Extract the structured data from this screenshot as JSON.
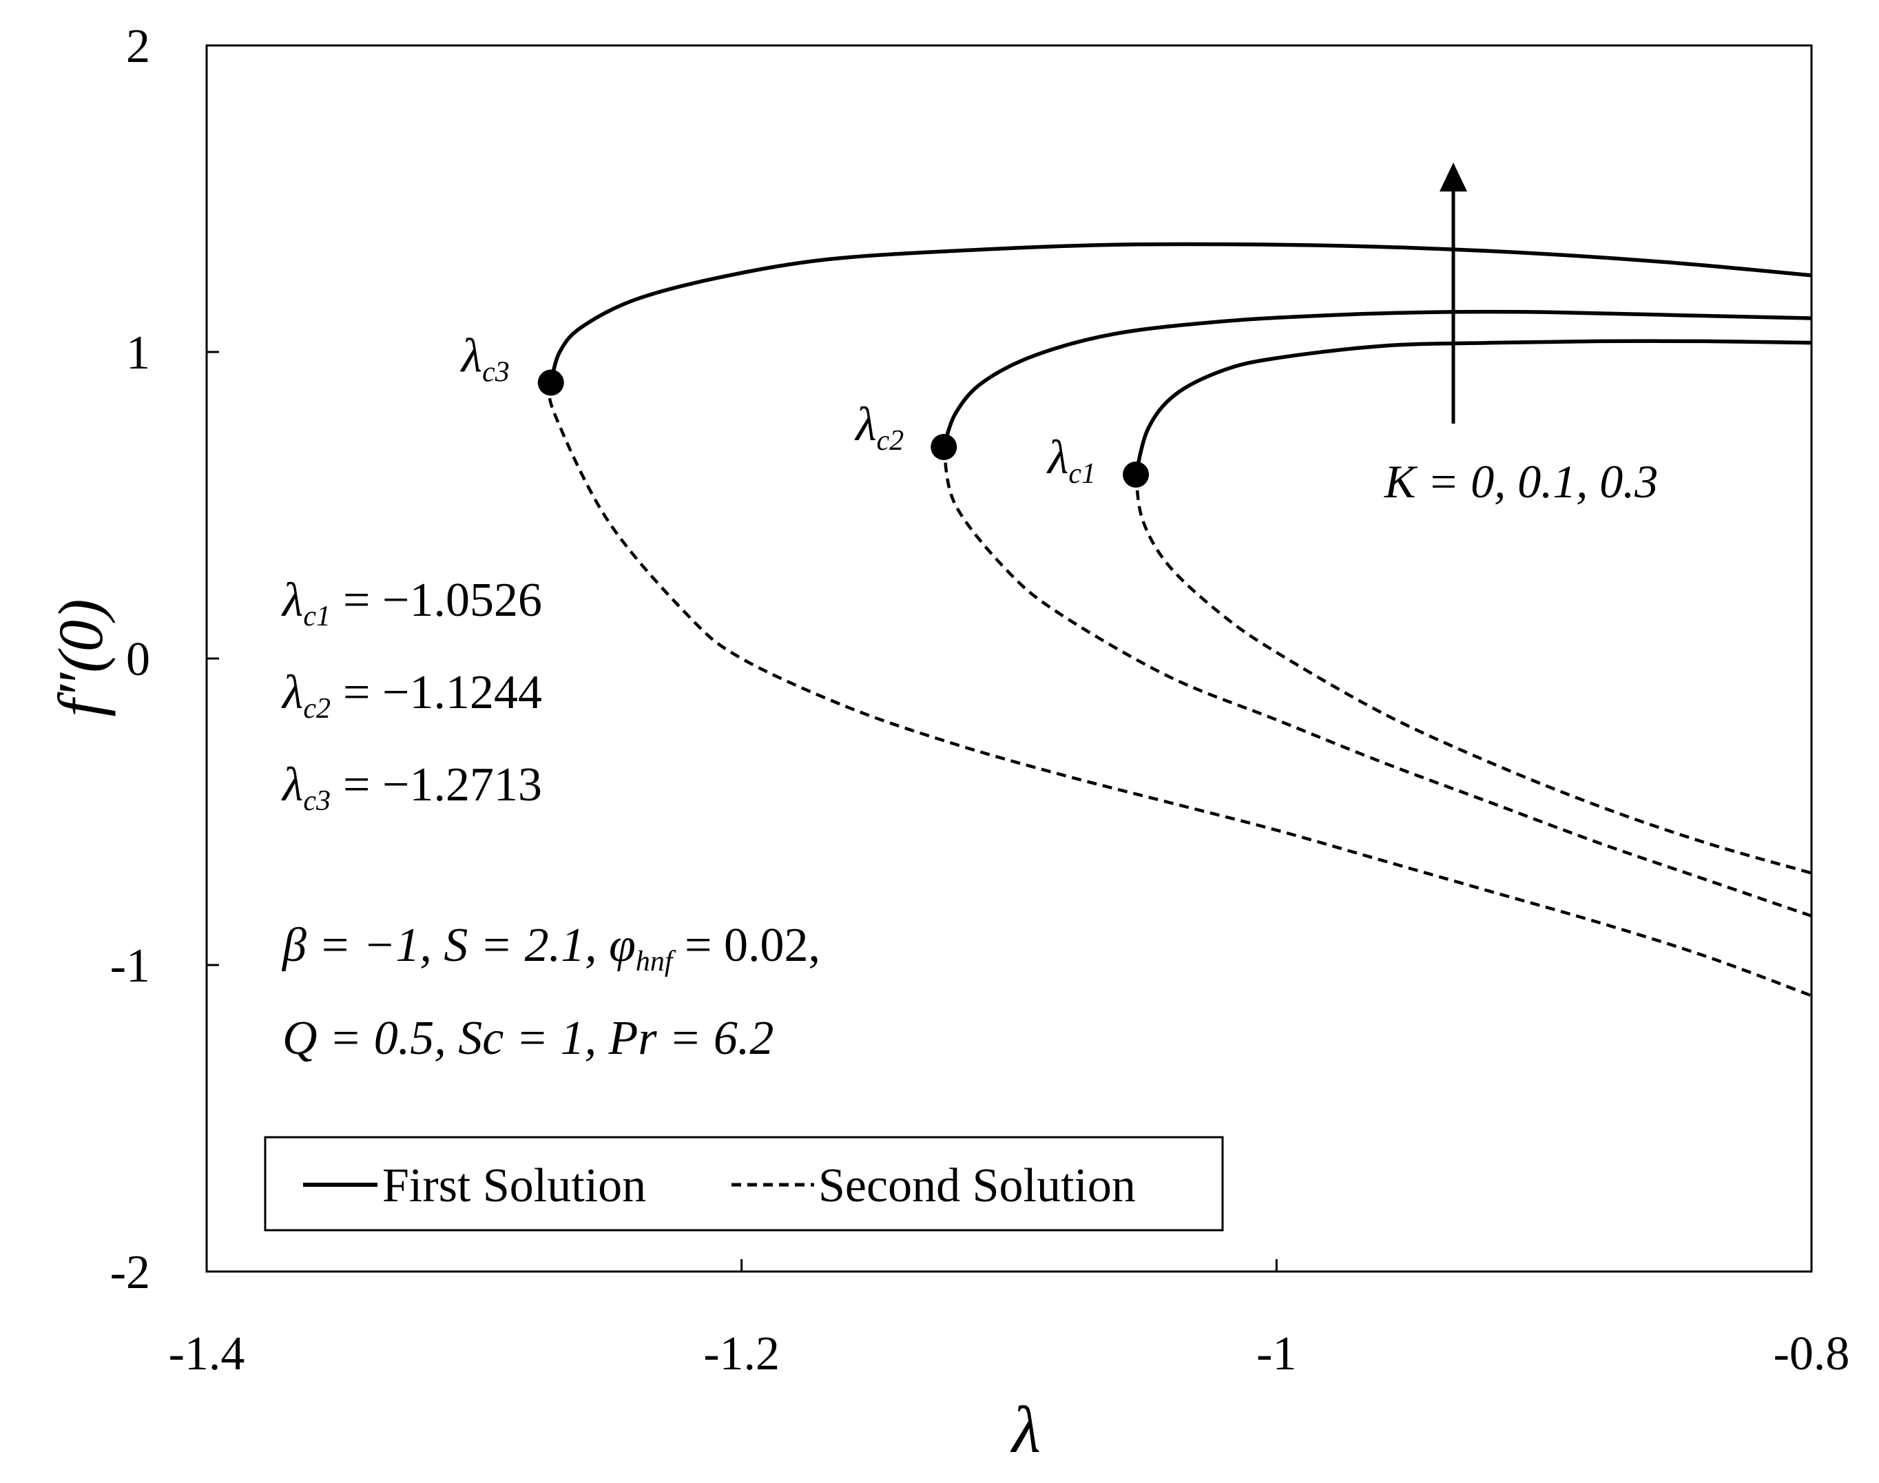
{
  "chart_data": {
    "type": "line",
    "xlabel": "λ",
    "ylabel": "f″(0)",
    "xlim": [
      -1.4,
      -0.8
    ],
    "ylim": [
      -2,
      2
    ],
    "xticks": [
      -1.4,
      -1.2,
      -1.0,
      -0.8
    ],
    "xtick_labels": [
      "-1.4",
      "-1.2",
      "-1",
      "-0.8"
    ],
    "yticks": [
      -2,
      -1,
      0,
      1,
      2
    ],
    "ytick_labels": [
      "-2",
      "-1",
      "0",
      "1",
      "2"
    ],
    "grid": false,
    "legend_position": "bottom-left",
    "legend": [
      "First Solution",
      "Second Solution"
    ],
    "series": [
      {
        "name": "First Solution",
        "style": "solid",
        "curves": [
          {
            "K": "0",
            "x": [
              -1.0526,
              -1.048,
              -1.038,
              -1.02,
              -1.0,
              -0.96,
              -0.92,
              -0.88,
              -0.84,
              -0.8
            ],
            "y": [
              0.6,
              0.75,
              0.86,
              0.94,
              0.98,
              1.02,
              1.03,
              1.035,
              1.035,
              1.03
            ]
          },
          {
            "K": "0.1",
            "x": [
              -1.1244,
              -1.12,
              -1.11,
              -1.09,
              -1.06,
              -1.02,
              -0.98,
              -0.94,
              -0.9,
              -0.85,
              -0.8
            ],
            "y": [
              0.69,
              0.8,
              0.9,
              0.99,
              1.06,
              1.1,
              1.12,
              1.13,
              1.13,
              1.12,
              1.11
            ]
          },
          {
            "K": "0.3",
            "x": [
              -1.2713,
              -1.268,
              -1.26,
              -1.24,
              -1.21,
              -1.17,
              -1.12,
              -1.06,
              -1.0,
              -0.95,
              -0.9,
              -0.85,
              -0.8
            ],
            "y": [
              0.9,
              1.0,
              1.08,
              1.17,
              1.24,
              1.3,
              1.33,
              1.35,
              1.35,
              1.34,
              1.32,
              1.29,
              1.25
            ]
          }
        ]
      },
      {
        "name": "Second Solution",
        "style": "dashed",
        "curves": [
          {
            "K": "0",
            "x": [
              -1.0526,
              -1.05,
              -1.04,
              -1.02,
              -1.0,
              -0.96,
              -0.92,
              -0.88,
              -0.84,
              -0.8
            ],
            "y": [
              0.6,
              0.45,
              0.3,
              0.14,
              0.02,
              -0.18,
              -0.34,
              -0.48,
              -0.6,
              -0.7
            ]
          },
          {
            "K": "0.1",
            "x": [
              -1.1244,
              -1.12,
              -1.1,
              -1.08,
              -1.04,
              -1.0,
              -0.96,
              -0.92,
              -0.88,
              -0.84,
              -0.8
            ],
            "y": [
              0.69,
              0.5,
              0.28,
              0.14,
              -0.06,
              -0.2,
              -0.34,
              -0.47,
              -0.6,
              -0.72,
              -0.84
            ]
          },
          {
            "K": "0.3",
            "x": [
              -1.2713,
              -1.27,
              -1.25,
              -1.22,
              -1.2,
              -1.16,
              -1.12,
              -1.08,
              -1.04,
              -1.0,
              -0.96,
              -0.92,
              -0.88,
              -0.84,
              -0.8
            ],
            "y": [
              0.9,
              0.8,
              0.45,
              0.14,
              0.0,
              -0.16,
              -0.28,
              -0.38,
              -0.47,
              -0.56,
              -0.66,
              -0.76,
              -0.86,
              -0.97,
              -1.1
            ]
          }
        ]
      }
    ],
    "turning_points": [
      {
        "label": "λc1",
        "base": "λ",
        "sub": "c1",
        "x": -1.0526,
        "y": 0.6
      },
      {
        "label": "λc2",
        "base": "λ",
        "sub": "c2",
        "x": -1.1244,
        "y": 0.69
      },
      {
        "label": "λc3",
        "base": "λ",
        "sub": "c3",
        "x": -1.2713,
        "y": 0.9
      }
    ],
    "annotations": {
      "arrow": {
        "label": "K = 0, 0.1, 0.3"
      },
      "critical_values": [
        {
          "base": "λ",
          "sub": "c1",
          "value": "= −1.0526"
        },
        {
          "base": "λ",
          "sub": "c2",
          "value": "= −1.1244"
        },
        {
          "base": "λ",
          "sub": "c3",
          "value": "= −1.2713"
        }
      ],
      "params_line1": "β = −1, S = 2.1, φ",
      "params_line1_sub": "hnf",
      "params_line1_end": " = 0.02,",
      "params_line2": "Q = 0.5, Sc = 1, Pr = 6.2"
    }
  }
}
